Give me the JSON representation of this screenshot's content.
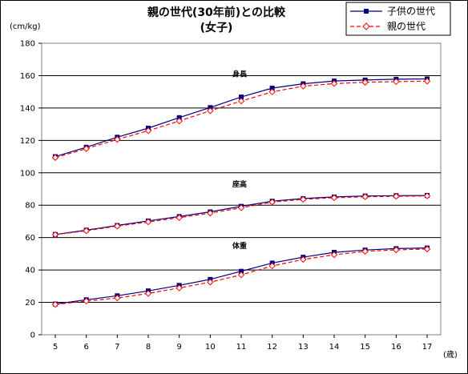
{
  "chart_data": {
    "type": "line",
    "title": "親の世代(30年前)との比較",
    "subtitle": "(女子)",
    "ylabel": "(cm/kg)",
    "xlabel": "(歳)",
    "x": [
      5,
      6,
      7,
      8,
      9,
      10,
      11,
      12,
      13,
      14,
      15,
      16,
      17
    ],
    "ylim": [
      0,
      180
    ],
    "yticks": [
      0,
      20,
      40,
      60,
      80,
      100,
      120,
      140,
      160,
      180
    ],
    "grid": true,
    "legend_position": "top-right",
    "colors": {
      "child": "#000080",
      "parent": "#ff0000"
    },
    "series": [
      {
        "name": "子供の世代",
        "group": "身長",
        "line": "solid",
        "marker": "square-filled",
        "values": [
          110.0,
          115.8,
          122.0,
          127.6,
          134.1,
          140.3,
          146.8,
          152.3,
          155.0,
          156.7,
          157.3,
          157.8,
          158.0
        ]
      },
      {
        "name": "親の世代",
        "group": "身長",
        "line": "dashed",
        "marker": "diamond-open",
        "values": [
          109.4,
          114.9,
          120.6,
          126.0,
          132.0,
          138.3,
          144.3,
          150.0,
          153.5,
          155.1,
          155.9,
          156.3,
          156.6
        ]
      },
      {
        "name": "子供の世代",
        "group": "座高",
        "line": "solid",
        "marker": "square-filled",
        "values": [
          61.9,
          64.6,
          67.5,
          70.3,
          73.0,
          75.9,
          79.3,
          82.5,
          84.1,
          85.1,
          85.7,
          85.9,
          86.0
        ]
      },
      {
        "name": "親の世代",
        "group": "座高",
        "line": "dashed",
        "marker": "diamond-open",
        "values": [
          61.8,
          64.2,
          67.1,
          69.7,
          72.3,
          75.1,
          78.4,
          81.9,
          83.6,
          84.6,
          85.2,
          85.5,
          85.7
        ]
      },
      {
        "name": "子供の世代",
        "group": "体重",
        "line": "solid",
        "marker": "square-filled",
        "values": [
          19.0,
          21.6,
          24.1,
          27.1,
          30.5,
          34.2,
          39.2,
          44.3,
          47.9,
          50.9,
          52.3,
          53.2,
          53.6
        ]
      },
      {
        "name": "親の世代",
        "group": "体重",
        "line": "dashed",
        "marker": "diamond-open",
        "values": [
          18.7,
          20.8,
          22.7,
          25.5,
          28.9,
          32.5,
          37.0,
          42.5,
          46.5,
          49.4,
          51.5,
          52.4,
          52.9
        ]
      }
    ],
    "annotations": [
      {
        "text": "身長",
        "x": 11,
        "y": 161
      },
      {
        "text": "座高",
        "x": 11,
        "y": 93
      },
      {
        "text": "体重",
        "x": 11,
        "y": 55
      }
    ],
    "legend": [
      {
        "label": "子供の世代",
        "series": "child"
      },
      {
        "label": "親の世代",
        "series": "parent"
      }
    ]
  }
}
